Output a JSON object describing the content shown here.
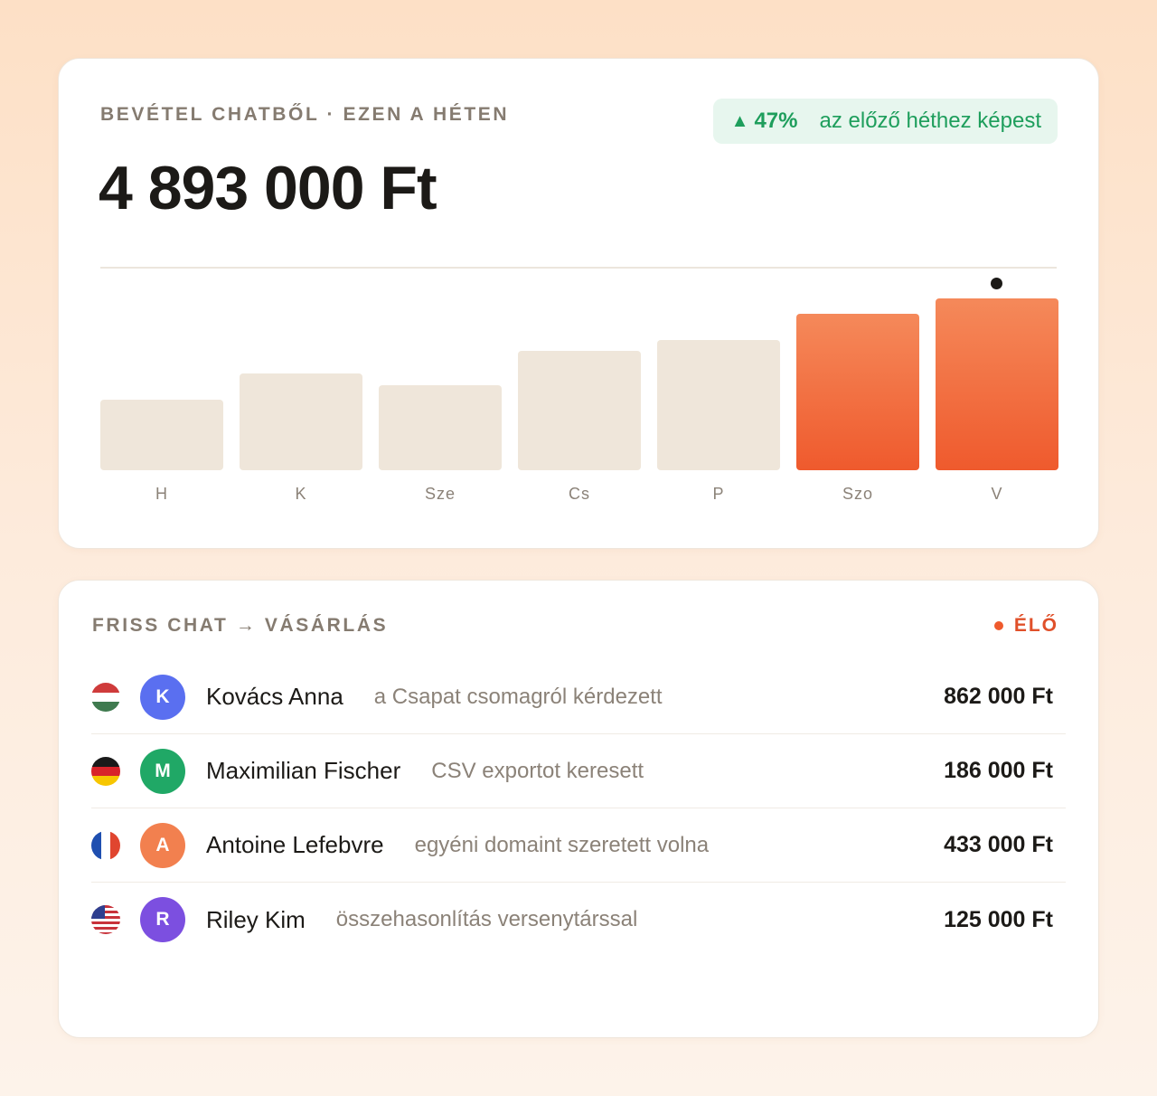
{
  "revenue": {
    "eyebrow": "BEVÉTEL CHATBŐL · EZEN A HÉTEN",
    "total": "4 893 000 Ft",
    "change": {
      "arrow": "▲",
      "percent": "47%",
      "label": "az előző héthez képest",
      "color": "#1e9e5c"
    }
  },
  "chart_data": {
    "type": "bar",
    "categories": [
      "H",
      "K",
      "Sze",
      "Cs",
      "P",
      "Szo",
      "V"
    ],
    "values": [
      78,
      107,
      94,
      132,
      144,
      173,
      190
    ],
    "highlighted": [
      "Szo",
      "V"
    ],
    "peak_marker": "V",
    "ylim": [
      0,
      190
    ],
    "title": "",
    "xlabel": "",
    "ylabel": "",
    "colors": {
      "base": "#efe6da",
      "highlight": "#ef5a2d"
    }
  },
  "chats": {
    "eyebrow": "FRISS CHAT → VÁSÁRLÁS",
    "live_label": "ÉLŐ",
    "rows": [
      {
        "flag": "hungary-flag-icon",
        "initial": "K",
        "avatar_color": "#5a6ff0",
        "name": "Kovács Anna",
        "note": "a Csapat csomagról kérdezett",
        "amount": "862 000 Ft"
      },
      {
        "flag": "germany-flag-icon",
        "initial": "M",
        "avatar_color": "#20a866",
        "name": "Maximilian Fischer",
        "note": "CSV exportot keresett",
        "amount": "186 000 Ft"
      },
      {
        "flag": "france-flag-icon",
        "initial": "A",
        "avatar_color": "#f2804f",
        "name": "Antoine Lefebvre",
        "note": "egyéni domaint szeretett volna",
        "amount": "433 000 Ft"
      },
      {
        "flag": "usa-flag-icon",
        "initial": "R",
        "avatar_color": "#7c4fe0",
        "name": "Riley Kim",
        "note": "összehasonlítás versenytárssal",
        "amount": "125 000 Ft"
      }
    ]
  }
}
